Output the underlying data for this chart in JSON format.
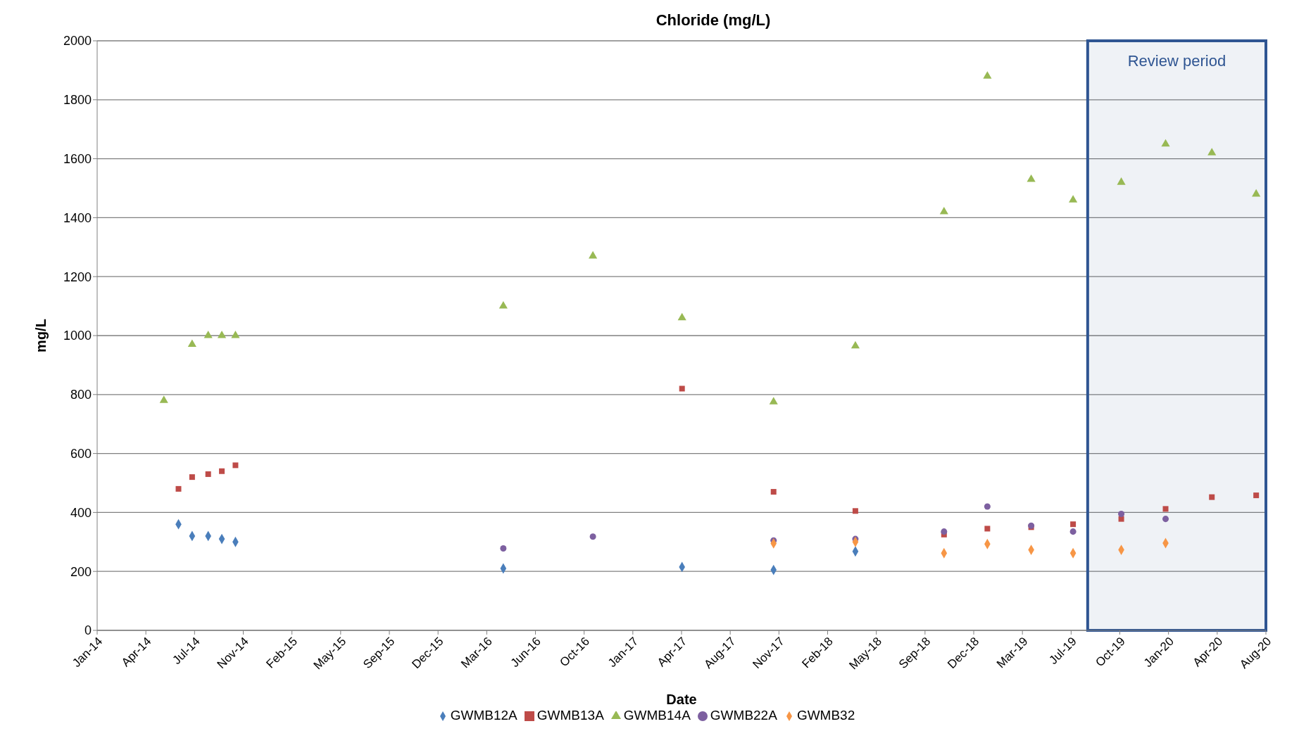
{
  "chart_data": {
    "type": "scatter",
    "title": "Chloride (mg/L)",
    "xlabel": "Date",
    "ylabel": "mg/L",
    "xlim": [
      "2014-01-11",
      "2020-08-07"
    ],
    "xticks": [
      {
        "value": "2014-01-11",
        "label": "Jan-14"
      },
      {
        "value": "2014-04-21",
        "label": "Apr-14"
      },
      {
        "value": "2014-07-30",
        "label": "Jul-14"
      },
      {
        "value": "2014-11-07",
        "label": "Nov-14"
      },
      {
        "value": "2015-02-15",
        "label": "Feb-15"
      },
      {
        "value": "2015-05-26",
        "label": "May-15"
      },
      {
        "value": "2015-09-03",
        "label": "Sep-15"
      },
      {
        "value": "2015-12-12",
        "label": "Dec-15"
      },
      {
        "value": "2016-03-21",
        "label": "Mar-16"
      },
      {
        "value": "2016-06-29",
        "label": "Jun-16"
      },
      {
        "value": "2016-10-07",
        "label": "Oct-16"
      },
      {
        "value": "2017-01-15",
        "label": "Jan-17"
      },
      {
        "value": "2017-04-25",
        "label": "Apr-17"
      },
      {
        "value": "2017-08-03",
        "label": "Aug-17"
      },
      {
        "value": "2017-11-11",
        "label": "Nov-17"
      },
      {
        "value": "2018-02-19",
        "label": "Feb-18"
      },
      {
        "value": "2018-05-30",
        "label": "May-18"
      },
      {
        "value": "2018-09-07",
        "label": "Sep-18"
      },
      {
        "value": "2018-12-16",
        "label": "Dec-18"
      },
      {
        "value": "2019-03-26",
        "label": "Mar-19"
      },
      {
        "value": "2019-07-04",
        "label": "Jul-19"
      },
      {
        "value": "2019-10-12",
        "label": "Oct-19"
      },
      {
        "value": "2020-01-20",
        "label": "Jan-20"
      },
      {
        "value": "2020-04-29",
        "label": "Apr-20"
      },
      {
        "value": "2020-08-07",
        "label": "Aug-20"
      }
    ],
    "ylim": [
      0,
      2000
    ],
    "yticks": [
      0,
      200,
      400,
      600,
      800,
      1000,
      1200,
      1400,
      1600,
      1800,
      2000
    ],
    "grid": "y",
    "legend": "bottom",
    "bands": [
      {
        "axis": "x",
        "from": "2019-08-07",
        "to": "2020-08-07",
        "label": "Review period",
        "color": "#2f5592"
      }
    ],
    "series": [
      {
        "name": "GWMB12A",
        "color": "#4a7ebb",
        "marker": "diamond",
        "x": [
          "2014-06-27",
          "2014-07-25",
          "2014-08-27",
          "2014-09-24",
          "2014-10-22",
          "2016-04-24",
          "2017-04-26",
          "2017-10-31",
          "2018-04-17"
        ],
        "values": [
          360,
          320,
          320,
          310,
          300,
          210,
          215,
          205,
          268
        ]
      },
      {
        "name": "GWMB13A",
        "color": "#be4b48",
        "marker": "square",
        "x": [
          "2014-06-27",
          "2014-07-25",
          "2014-08-27",
          "2014-09-24",
          "2014-10-22",
          "2017-04-26",
          "2017-10-31",
          "2018-04-17",
          "2018-10-16",
          "2019-01-13",
          "2019-04-13",
          "2019-07-08",
          "2019-10-15",
          "2020-01-14",
          "2020-04-18",
          "2020-07-18"
        ],
        "values": [
          480,
          520,
          530,
          540,
          560,
          820,
          470,
          405,
          325,
          345,
          350,
          360,
          378,
          412,
          452,
          458
        ]
      },
      {
        "name": "GWMB14A",
        "color": "#98b954",
        "marker": "triangle",
        "x": [
          "2014-05-28",
          "2014-07-25",
          "2014-08-27",
          "2014-09-24",
          "2014-10-22",
          "2016-04-24",
          "2016-10-25",
          "2017-04-26",
          "2017-10-31",
          "2018-04-17",
          "2018-10-16",
          "2019-01-13",
          "2019-04-13",
          "2019-07-08",
          "2019-10-15",
          "2020-01-14",
          "2020-04-18",
          "2020-07-18"
        ],
        "values": [
          780,
          970,
          1000,
          1000,
          1000,
          1100,
          1270,
          1060,
          775,
          965,
          1420,
          1880,
          1530,
          1460,
          1520,
          1650,
          1620,
          1480
        ]
      },
      {
        "name": "GWMB22A",
        "color": "#7d60a0",
        "marker": "circle",
        "x": [
          "2016-04-24",
          "2016-10-25",
          "2017-10-31",
          "2018-04-17",
          "2018-10-16",
          "2019-01-13",
          "2019-04-13",
          "2019-07-08",
          "2019-10-15",
          "2020-01-14"
        ],
        "values": [
          278,
          318,
          305,
          310,
          335,
          420,
          355,
          335,
          395,
          378
        ]
      },
      {
        "name": "GWMB32",
        "color": "#f79646",
        "marker": "diamond",
        "x": [
          "2017-10-31",
          "2018-04-17",
          "2018-10-16",
          "2019-01-13",
          "2019-04-13",
          "2019-07-08",
          "2019-10-15",
          "2020-01-14"
        ],
        "values": [
          295,
          300,
          262,
          293,
          273,
          262,
          273,
          296
        ]
      }
    ]
  }
}
